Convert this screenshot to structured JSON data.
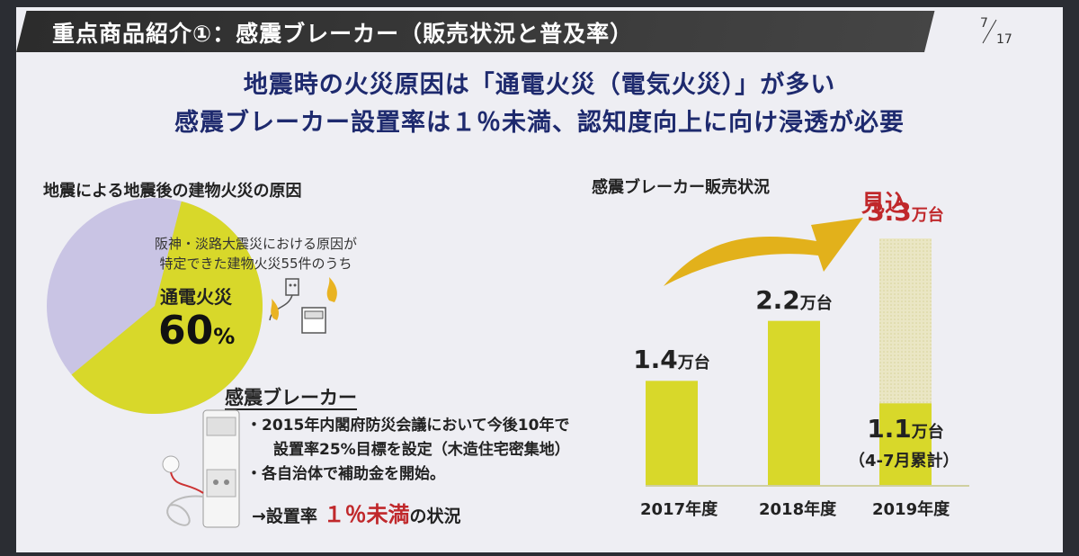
{
  "header": {
    "title": "重点商品紹介①：感震ブレーカー（販売状況と普及率）",
    "page_current": "7",
    "page_total": "17"
  },
  "headline": {
    "line1": "地震時の火災原因は「通電火災（電気火災）」が多い",
    "line2": "感震ブレーカー設置率は１％未満、認知度向上に向け浸透が必要"
  },
  "pie_section": {
    "title": "地震による地震後の建物火災の原因",
    "note_line1": "阪神・淡路大震災における原因が",
    "note_line2": "特定できた建物火災55件のうち",
    "label": "通電火災",
    "value": "60",
    "value_unit": "%",
    "share": 0.6,
    "colors": {
      "main": "#d8d82a",
      "rest": "#c9c4e4"
    }
  },
  "breaker_section": {
    "title": "感震ブレーカー",
    "bullet1_line1": "・2015年内閣府防災会議において今後10年で",
    "bullet1_line2": "設置率25%目標を設定（木造住宅密集地）",
    "bullet2": "・各自治体で補助金を開始。",
    "result_prefix": "→設置率",
    "result_value": "１％未満",
    "result_suffix": "の状況"
  },
  "chart_data": {
    "type": "bar",
    "title": "感震ブレーカー販売状況",
    "categories": [
      "2017年度",
      "2018年度",
      "2019年度"
    ],
    "values": [
      1.4,
      2.2,
      3.3
    ],
    "value_labels": [
      "1.4",
      "2.2",
      "3.3"
    ],
    "unit": "万台",
    "forecast_label": "見込",
    "actual_2019": {
      "value": 1.1,
      "label": "1.1",
      "note": "（4-7月累計）"
    },
    "ylim": [
      0,
      3.6
    ],
    "colors": {
      "bar": "#d8d82a",
      "forecast_fill": "#e7e3bf",
      "forecast_text": "#c0282b"
    }
  }
}
